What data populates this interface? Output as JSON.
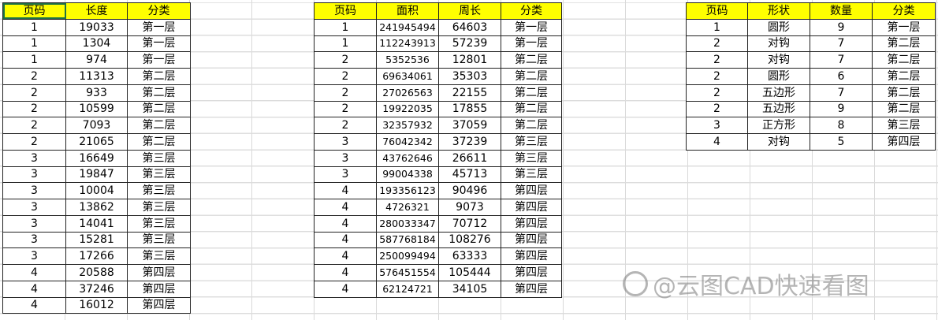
{
  "table1": {
    "headers": [
      "页码",
      "长度",
      "分类"
    ],
    "rows": [
      [
        "1",
        "19033",
        "第一层"
      ],
      [
        "1",
        "1304",
        "第一层"
      ],
      [
        "1",
        "974",
        "第一层"
      ],
      [
        "2",
        "11313",
        "第二层"
      ],
      [
        "2",
        "933",
        "第二层"
      ],
      [
        "2",
        "10599",
        "第二层"
      ],
      [
        "2",
        "7093",
        "第二层"
      ],
      [
        "2",
        "21065",
        "第二层"
      ],
      [
        "3",
        "16649",
        "第三层"
      ],
      [
        "3",
        "19847",
        "第三层"
      ],
      [
        "3",
        "10004",
        "第三层"
      ],
      [
        "3",
        "13862",
        "第三层"
      ],
      [
        "3",
        "14041",
        "第三层"
      ],
      [
        "3",
        "15281",
        "第三层"
      ],
      [
        "3",
        "17266",
        "第三层"
      ],
      [
        "4",
        "20588",
        "第四层"
      ],
      [
        "4",
        "37246",
        "第四层"
      ],
      [
        "4",
        "16012",
        "第四层"
      ]
    ]
  },
  "table2": {
    "headers": [
      "页码",
      "面积",
      "周长",
      "分类"
    ],
    "rows": [
      [
        "1",
        "241945494",
        "64603",
        "第一层"
      ],
      [
        "1",
        "112243913",
        "57239",
        "第一层"
      ],
      [
        "2",
        "5352536",
        "12801",
        "第二层"
      ],
      [
        "2",
        "69634061",
        "35303",
        "第二层"
      ],
      [
        "2",
        "27026563",
        "22155",
        "第二层"
      ],
      [
        "2",
        "19922035",
        "17855",
        "第二层"
      ],
      [
        "2",
        "32357932",
        "37059",
        "第二层"
      ],
      [
        "3",
        "76042342",
        "37239",
        "第三层"
      ],
      [
        "3",
        "43762646",
        "26611",
        "第三层"
      ],
      [
        "3",
        "99004338",
        "45713",
        "第三层"
      ],
      [
        "4",
        "193356123",
        "90496",
        "第四层"
      ],
      [
        "4",
        "4726321",
        "9073",
        "第四层"
      ],
      [
        "4",
        "280033347",
        "70712",
        "第四层"
      ],
      [
        "4",
        "587768184",
        "108276",
        "第四层"
      ],
      [
        "4",
        "250099494",
        "63333",
        "第四层"
      ],
      [
        "4",
        "576451554",
        "105444",
        "第四层"
      ],
      [
        "4",
        "62124721",
        "34105",
        "第四层"
      ]
    ]
  },
  "table3": {
    "headers": [
      "页码",
      "形状",
      "数量",
      "分类"
    ],
    "rows": [
      [
        "1",
        "圆形",
        "9",
        "第一层"
      ],
      [
        "2",
        "对钩",
        "7",
        "第二层"
      ],
      [
        "2",
        "对钩",
        "7",
        "第二层"
      ],
      [
        "2",
        "圆形",
        "6",
        "第二层"
      ],
      [
        "2",
        "五边形",
        "7",
        "第二层"
      ],
      [
        "2",
        "五边形",
        "9",
        "第二层"
      ],
      [
        "3",
        "正方形",
        "8",
        "第三层"
      ],
      [
        "4",
        "对钩",
        "5",
        "第四层"
      ]
    ]
  },
  "colors": {
    "header_fill": "#ffff00",
    "selection": "#1e7145"
  },
  "watermark": "@云图CAD快速看图"
}
